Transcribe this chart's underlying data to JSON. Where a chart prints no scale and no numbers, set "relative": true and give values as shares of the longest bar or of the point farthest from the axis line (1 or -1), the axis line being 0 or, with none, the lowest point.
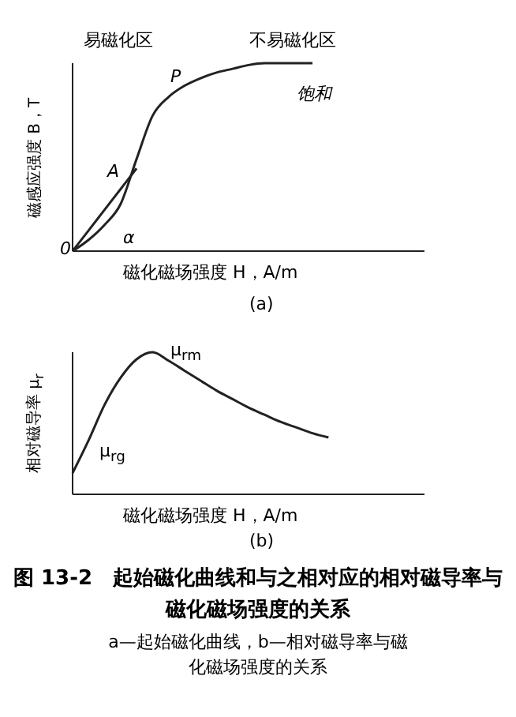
{
  "chart_data": [
    {
      "type": "line",
      "relative": true,
      "marker": "none",
      "xlabel": "磁化磁场强度 H，A/m",
      "ylabel": "磁感应强度 B，T",
      "categories": [
        null,
        null,
        null,
        null,
        null,
        null,
        null,
        null,
        null,
        null,
        null,
        null,
        null,
        null,
        null,
        null,
        null,
        null,
        null,
        null,
        null,
        null,
        null
      ],
      "series": [
        {
          "color": "#222222",
          "values": [
            0,
            0.06,
            0.14,
            0.25,
            0.49,
            0.72,
            0.82,
            0.88,
            0.92,
            0.95,
            0.97,
            0.99,
            1,
            1,
            1,
            1,
            null,
            null,
            null,
            null,
            null,
            null,
            null
          ]
        },
        {
          "color": "#222222",
          "values": [
            0,
            0.11,
            0.22,
            0.33,
            0.44,
            null,
            null,
            null,
            null,
            null,
            null,
            null,
            null,
            null,
            null,
            null,
            null,
            null,
            null,
            null,
            null,
            null,
            null
          ]
        }
      ],
      "annotations": [
        "易磁化区",
        "不易磁化区",
        "A",
        "P",
        "饱和",
        "α",
        "0",
        "(a)"
      ]
    },
    {
      "type": "line",
      "relative": true,
      "marker": "none",
      "xlabel": "磁化磁场强度 H，A/m",
      "ylabel": "相对磁导率 μ$_{r}$",
      "categories": [
        null,
        null,
        null,
        null,
        null,
        null,
        null,
        null,
        null,
        null,
        null,
        null,
        null,
        null,
        null,
        null,
        null,
        null,
        null,
        null,
        null,
        null,
        null
      ],
      "series": [
        {
          "color": "#222222",
          "values": [
            0.15,
            0.38,
            0.63,
            0.82,
            0.95,
            1,
            0.94,
            0.87,
            0.8,
            0.73,
            0.67,
            0.61,
            0.56,
            0.51,
            0.47,
            0.43,
            0.4,
            null,
            null,
            null,
            null,
            null,
            null
          ]
        }
      ],
      "annotations": [
        "μ$_{rm}$",
        "μ$_{rg}$",
        "(b)"
      ]
    },
    {
      "type": "other",
      "title": "图 13-2　起始磁化曲线和与之相对应的相对磁导率与磁化磁场强度的关系",
      "subtitle": "a—起始磁化曲线，b—相对磁导率与磁化磁场强度的关系"
    }
  ]
}
